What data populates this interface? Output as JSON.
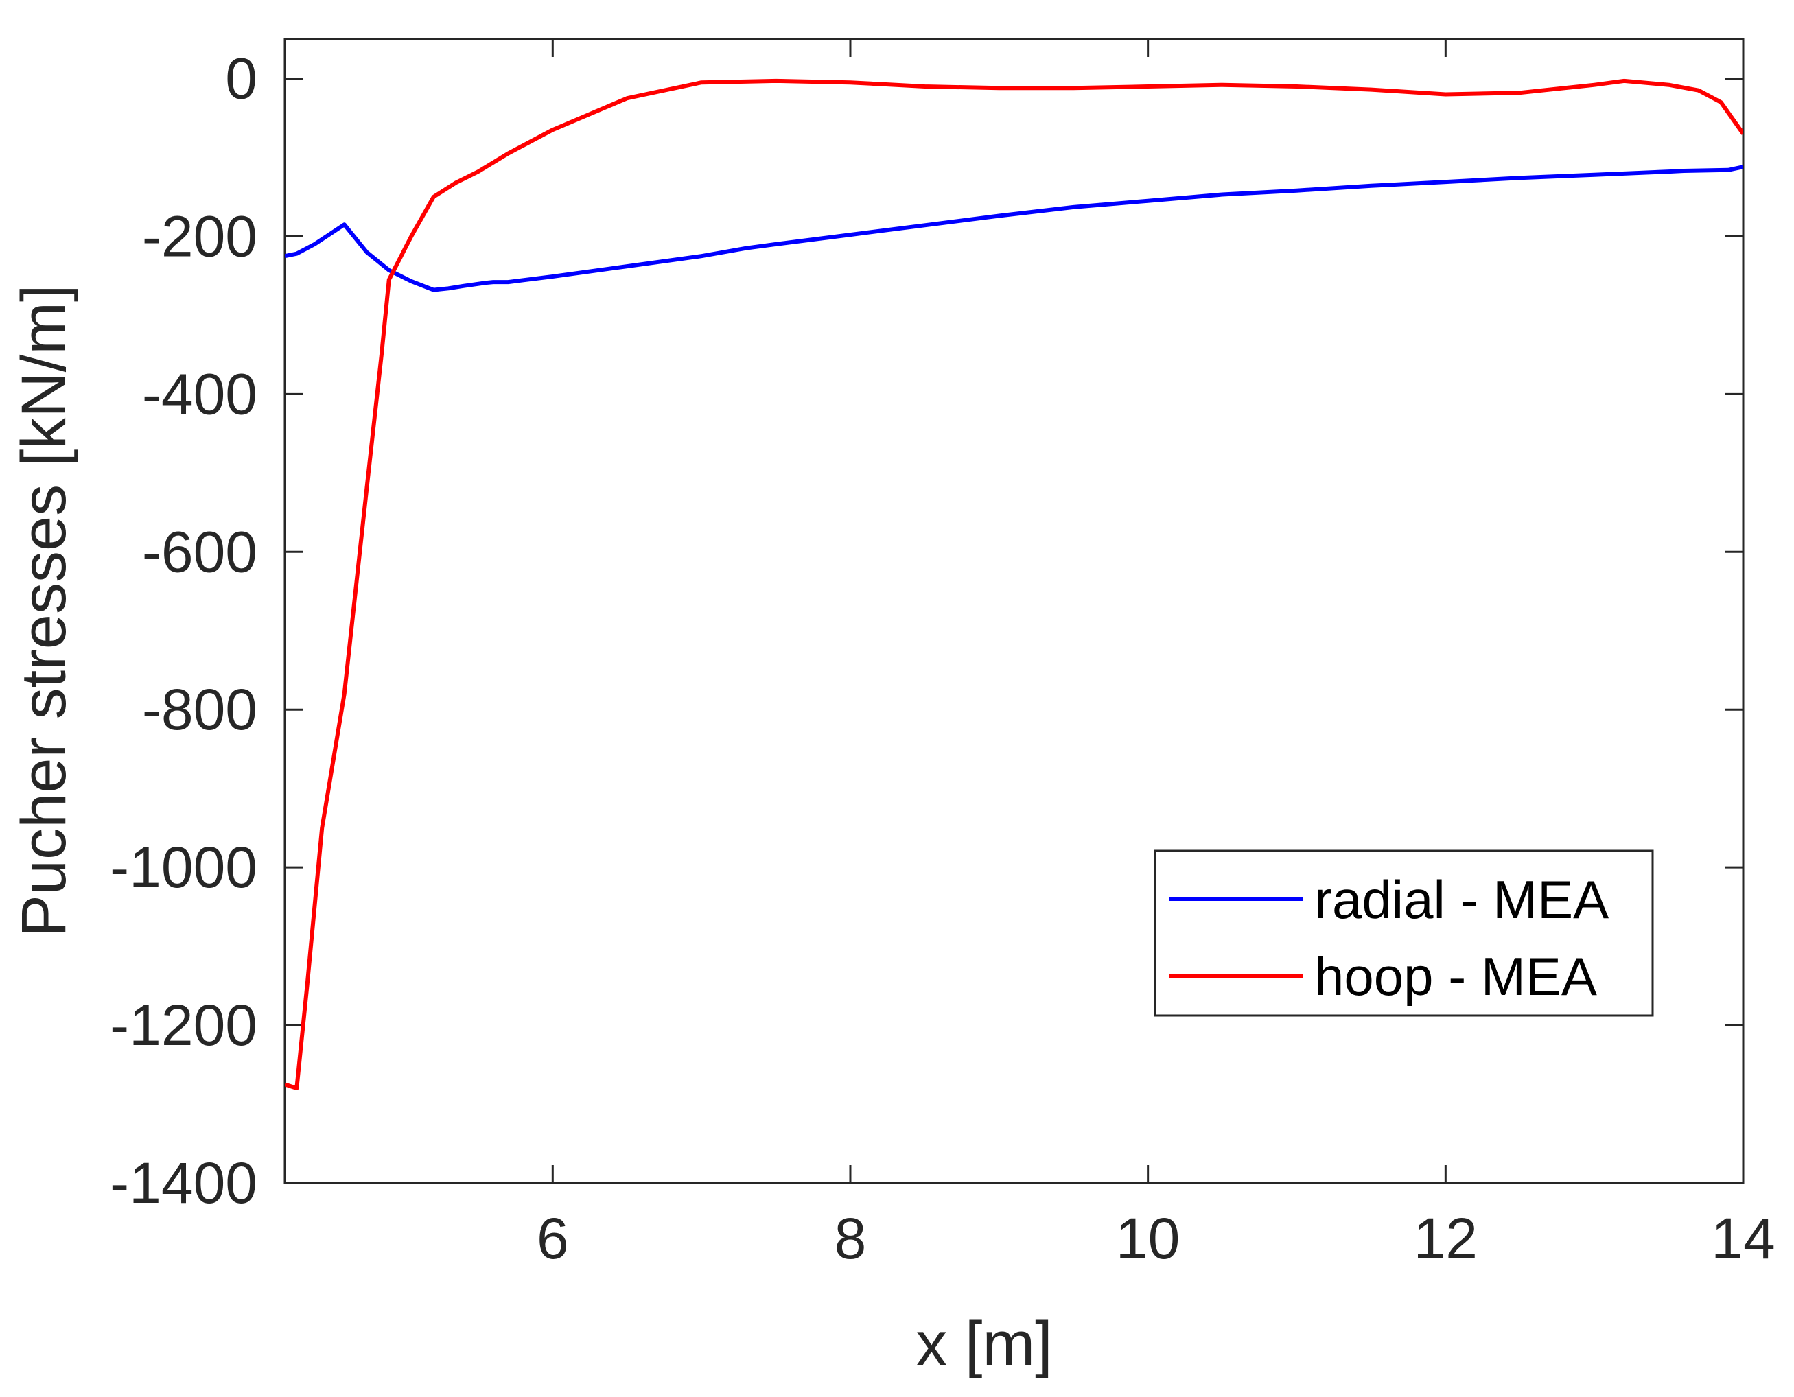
{
  "chart_data": {
    "type": "line",
    "title": "",
    "xlabel": "x [m]",
    "ylabel": "Pucher stresses [kN/m]",
    "xlim": [
      4.2,
      14
    ],
    "ylim": [
      -1400,
      50
    ],
    "xticks": [
      6,
      8,
      10,
      12,
      14
    ],
    "yticks": [
      0,
      -200,
      -400,
      -600,
      -800,
      -1000,
      -1200,
      -1400
    ],
    "grid": false,
    "legend_position": "bottom-right",
    "series": [
      {
        "name": "radial - MEA",
        "color": "#0000ff",
        "x": [
          4.2,
          4.28,
          4.4,
          4.6,
          4.75,
          4.9,
          5.05,
          5.2,
          5.3,
          5.4,
          5.55,
          5.6,
          5.7,
          6.0,
          6.5,
          7.0,
          7.3,
          7.5,
          8.0,
          8.5,
          9.0,
          9.5,
          10.0,
          10.5,
          11.0,
          11.5,
          12.0,
          12.5,
          13.0,
          13.5,
          13.6,
          13.9,
          14.0
        ],
        "y": [
          -225,
          -222,
          -210,
          -185,
          -220,
          -243,
          -257,
          -268,
          -266,
          -263,
          -259,
          -258,
          -258,
          -251,
          -238,
          -225,
          -215,
          -210,
          -198,
          -186,
          -174,
          -163,
          -155,
          -147,
          -142,
          -136,
          -131,
          -126,
          -122,
          -118,
          -117,
          -116,
          -112
        ]
      },
      {
        "name": "hoop - MEA",
        "color": "#ff0000",
        "x": [
          4.2,
          4.28,
          4.35,
          4.45,
          4.6,
          4.75,
          4.85,
          4.9,
          5.05,
          5.2,
          5.35,
          5.5,
          5.7,
          6.0,
          6.5,
          7.0,
          7.5,
          8.0,
          8.5,
          9.0,
          9.5,
          10.0,
          10.5,
          11.0,
          11.5,
          12.0,
          12.5,
          13.0,
          13.2,
          13.5,
          13.7,
          13.85,
          14.0
        ],
        "y": [
          -1275,
          -1280,
          -1150,
          -950,
          -780,
          -520,
          -350,
          -255,
          -200,
          -150,
          -132,
          -118,
          -95,
          -65,
          -25,
          -5,
          -3,
          -5,
          -10,
          -12,
          -12,
          -10,
          -8,
          -10,
          -14,
          -20,
          -18,
          -8,
          -3,
          -8,
          -15,
          -30,
          -70
        ]
      }
    ]
  }
}
